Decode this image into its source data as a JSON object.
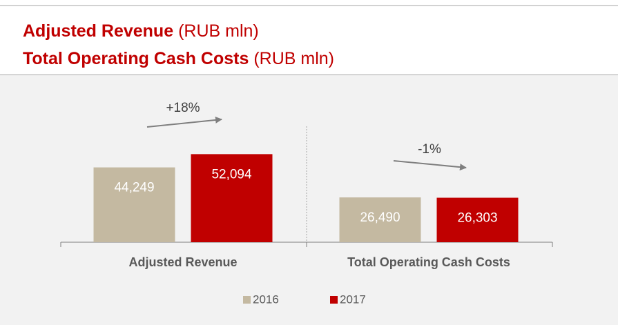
{
  "chart_data": {
    "type": "bar",
    "title_lines": [
      {
        "bold": "Adjusted Revenue",
        "normal": "(RUB mln)"
      },
      {
        "bold": "Total Operating Cash Costs",
        "normal": "(RUB mln)"
      }
    ],
    "categories": [
      "Adjusted Revenue",
      "Total Operating Cash Costs"
    ],
    "series": [
      {
        "name": "2016",
        "color": "#c4b9a1",
        "values": [
          44249,
          26490
        ],
        "value_labels": [
          "44,249",
          "26,490"
        ]
      },
      {
        "name": "2017",
        "color": "#c00000",
        "values": [
          52094,
          26303
        ],
        "value_labels": [
          "52,094",
          "26,303"
        ]
      }
    ],
    "annotations": [
      "+18%",
      "-1%"
    ],
    "ylim": [
      0,
      60000
    ]
  }
}
